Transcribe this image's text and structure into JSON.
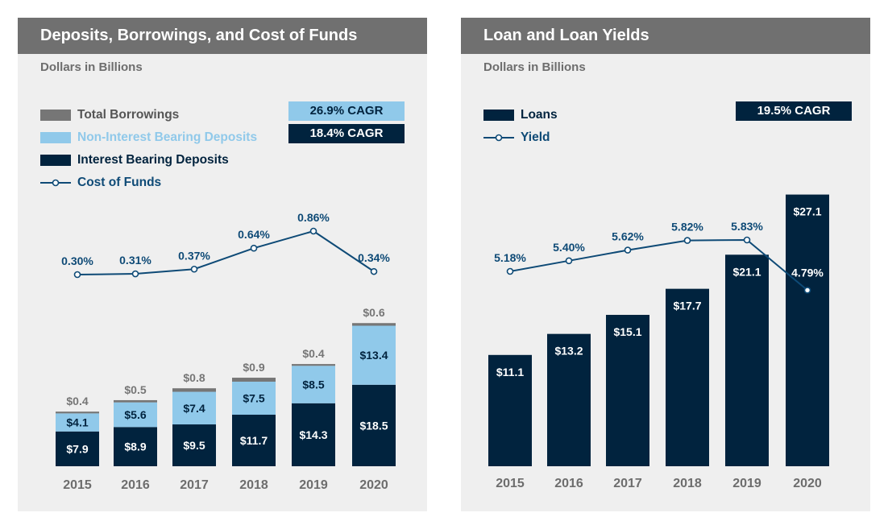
{
  "colors": {
    "header_bg": "#707070",
    "panel_bg": "#efefef",
    "navy": "#01233e",
    "light_blue": "#90c9ea",
    "gray": "#767676",
    "line_blue": "#0e4a76",
    "subtitle_gray": "#6d6d6d"
  },
  "left_panel": {
    "title": "Deposits, Borrowings, and Cost of Funds",
    "subtitle": "Dollars in Billions",
    "legend": [
      {
        "label": "Total Borrowings",
        "kind": "bar",
        "color": "#767676",
        "text_color": "#555555"
      },
      {
        "label": "Non-Interest Bearing Deposits",
        "kind": "bar",
        "color": "#90c9ea",
        "text_color": "#90c9ea"
      },
      {
        "label": "Interest Bearing Deposits",
        "kind": "bar",
        "color": "#01233e",
        "text_color": "#01233e"
      },
      {
        "label": "Cost of Funds",
        "kind": "line",
        "color": "#0e4a76",
        "text_color": "#0e4a76"
      }
    ],
    "cagr_badges": [
      {
        "label": "26.9% CAGR",
        "bg": "#90c9ea",
        "fg": "#01233e"
      },
      {
        "label": "18.4% CAGR",
        "bg": "#01233e",
        "fg": "#ffffff"
      }
    ]
  },
  "right_panel": {
    "title": "Loan and Loan Yields",
    "subtitle": "Dollars in Billions",
    "legend": [
      {
        "label": "Loans",
        "kind": "bar",
        "color": "#01233e",
        "text_color": "#01233e"
      },
      {
        "label": "Yield",
        "kind": "line",
        "color": "#0e4a76",
        "text_color": "#0e4a76"
      }
    ],
    "cagr_badges": [
      {
        "label": "19.5% CAGR",
        "bg": "#01233e",
        "fg": "#ffffff"
      }
    ]
  },
  "chart_data": [
    {
      "type": "bar",
      "stacked": true,
      "title": "Deposits, Borrowings, and Cost of Funds",
      "subtitle": "Dollars in Billions",
      "categories": [
        "2015",
        "2016",
        "2017",
        "2018",
        "2019",
        "2020"
      ],
      "series": [
        {
          "name": "Interest Bearing Deposits",
          "values": [
            7.9,
            8.9,
            9.5,
            11.7,
            14.3,
            18.5
          ],
          "labels": [
            "$7.9",
            "$8.9",
            "$9.5",
            "$11.7",
            "$14.3",
            "$18.5"
          ],
          "color": "#01233e",
          "label_color": "#ffffff"
        },
        {
          "name": "Non-Interest Bearing Deposits",
          "values": [
            4.1,
            5.6,
            7.4,
            7.5,
            8.5,
            13.4
          ],
          "labels": [
            "$4.1",
            "$5.6",
            "$7.4",
            "$7.5",
            "$8.5",
            "$13.4"
          ],
          "color": "#90c9ea",
          "label_color": "#01233e"
        },
        {
          "name": "Total Borrowings",
          "values": [
            0.4,
            0.5,
            0.8,
            0.9,
            0.4,
            0.6
          ],
          "labels": [
            "$0.4",
            "$0.5",
            "$0.8",
            "$0.9",
            "$0.4",
            "$0.6"
          ],
          "color": "#767676",
          "label_color": "#767676"
        }
      ],
      "line": {
        "name": "Cost of Funds",
        "values": [
          0.3,
          0.31,
          0.37,
          0.64,
          0.86,
          0.34
        ],
        "labels": [
          "0.30%",
          "0.31%",
          "0.37%",
          "0.64%",
          "0.86%",
          "0.34%"
        ],
        "color": "#0e4a76"
      },
      "legend_position": "top-left",
      "grid": false
    },
    {
      "type": "bar",
      "stacked": false,
      "title": "Loan and Loan Yields",
      "subtitle": "Dollars in Billions",
      "categories": [
        "2015",
        "2016",
        "2017",
        "2018",
        "2019",
        "2020"
      ],
      "series": [
        {
          "name": "Loans",
          "values": [
            11.1,
            13.2,
            15.1,
            17.7,
            21.1,
            27.1
          ],
          "labels": [
            "$11.1",
            "$13.2",
            "$15.1",
            "$17.7",
            "$21.1",
            "$27.1"
          ],
          "color": "#01233e",
          "label_color": "#ffffff"
        }
      ],
      "line": {
        "name": "Yield",
        "values": [
          5.18,
          5.4,
          5.62,
          5.82,
          5.83,
          4.79
        ],
        "labels": [
          "5.18%",
          "5.40%",
          "5.62%",
          "5.82%",
          "5.83%",
          "4.79%"
        ],
        "color": "#0e4a76"
      },
      "legend_position": "top-left",
      "grid": false
    }
  ]
}
